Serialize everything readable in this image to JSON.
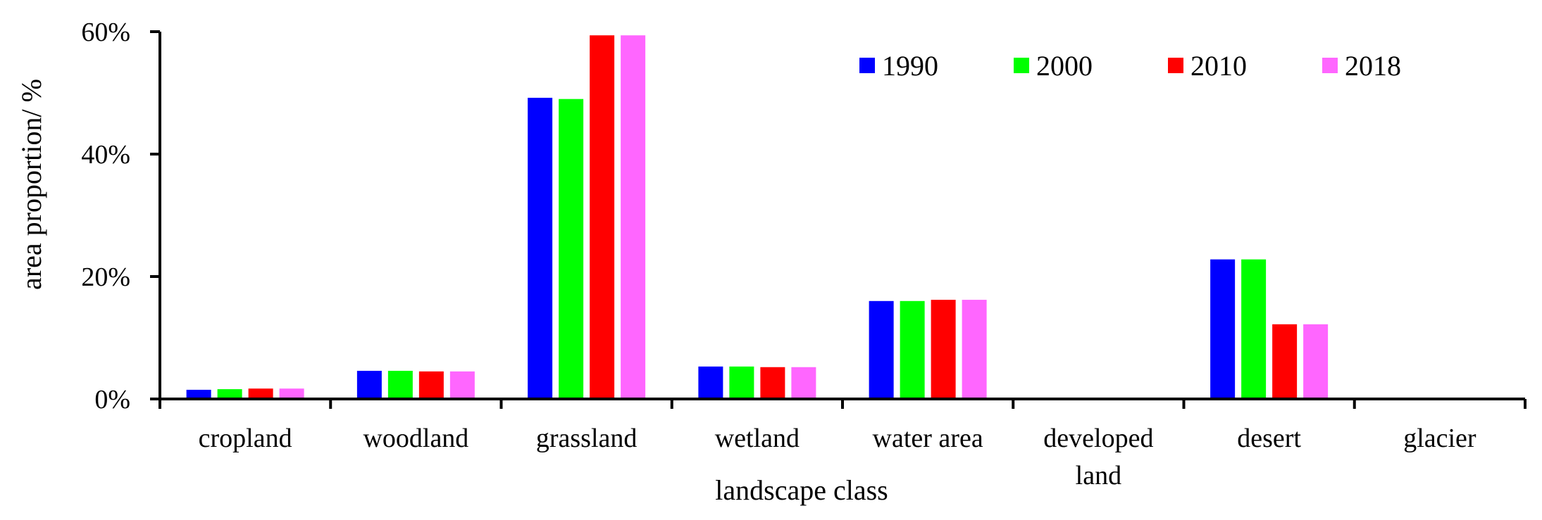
{
  "chart_data": {
    "type": "bar",
    "title": "",
    "xlabel": "landscape class",
    "ylabel": "area proportion/ %",
    "ylim": [
      0,
      60
    ],
    "yticks": [
      "0%",
      "20%",
      "40%",
      "60%"
    ],
    "ytick_values": [
      0,
      20,
      40,
      60
    ],
    "categories": [
      "cropland",
      "woodland",
      "grassland",
      "wetland",
      "water area",
      "developed land",
      "desert",
      "glacier"
    ],
    "series": [
      {
        "name": "1990",
        "color": "#0000ff",
        "values": [
          1.5,
          4.6,
          49.2,
          5.3,
          16.0,
          0.0,
          22.8,
          0.0
        ]
      },
      {
        "name": "2000",
        "color": "#00ff00",
        "values": [
          1.6,
          4.6,
          49.0,
          5.3,
          16.0,
          0.0,
          22.8,
          0.0
        ]
      },
      {
        "name": "2010",
        "color": "#ff0000",
        "values": [
          1.7,
          4.5,
          59.4,
          5.2,
          16.2,
          0.0,
          12.2,
          0.0
        ]
      },
      {
        "name": "2018",
        "color": "#ff66ff",
        "values": [
          1.7,
          4.5,
          59.4,
          5.2,
          16.2,
          0.0,
          12.2,
          0.0
        ]
      }
    ],
    "legend_position": "top-right",
    "grid": false
  }
}
